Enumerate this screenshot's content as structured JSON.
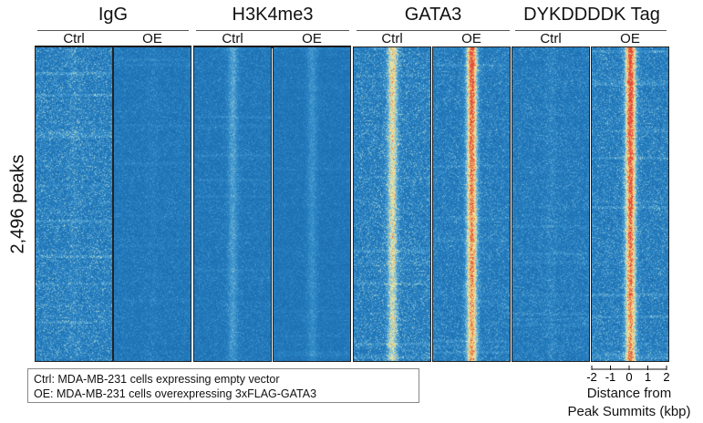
{
  "chart_data": {
    "type": "heatmap",
    "ylabel": "2,496 peaks",
    "groups": [
      {
        "title": "IgG",
        "conditions": [
          "Ctrl",
          "OE"
        ],
        "center_signal": [
          0.05,
          0.03
        ],
        "background_signal": [
          0.22,
          0.12
        ]
      },
      {
        "title": "H3K4me3",
        "conditions": [
          "Ctrl",
          "OE"
        ],
        "center_signal": [
          0.22,
          0.16
        ],
        "background_signal": [
          0.12,
          0.1
        ]
      },
      {
        "title": "GATA3",
        "conditions": [
          "Ctrl",
          "OE"
        ],
        "center_signal": [
          0.55,
          0.95
        ],
        "background_signal": [
          0.22,
          0.18
        ]
      },
      {
        "title": "DYKDDDDK Tag",
        "conditions": [
          "Ctrl",
          "OE"
        ],
        "center_signal": [
          0.06,
          1.0
        ],
        "background_signal": [
          0.16,
          0.2
        ]
      }
    ],
    "x_axis": {
      "title_lines": [
        "Distance from",
        "Peak Summits (kbp)"
      ],
      "ticks": [
        -2,
        -1,
        0,
        1,
        2
      ],
      "tick_labels": [
        "-2",
        "-1",
        "0",
        "1",
        "2"
      ],
      "range": [
        -2,
        2
      ]
    },
    "colormap": [
      "#1565a8",
      "#2c86c6",
      "#6fb4d8",
      "#e9ebb0",
      "#f3c86f",
      "#e4473d"
    ],
    "legend": [
      "Ctrl: MDA-MB-231 cells expressing empty vector",
      "OE: MDA-MB-231 cells overexpressing 3xFLAG-GATA3"
    ]
  }
}
